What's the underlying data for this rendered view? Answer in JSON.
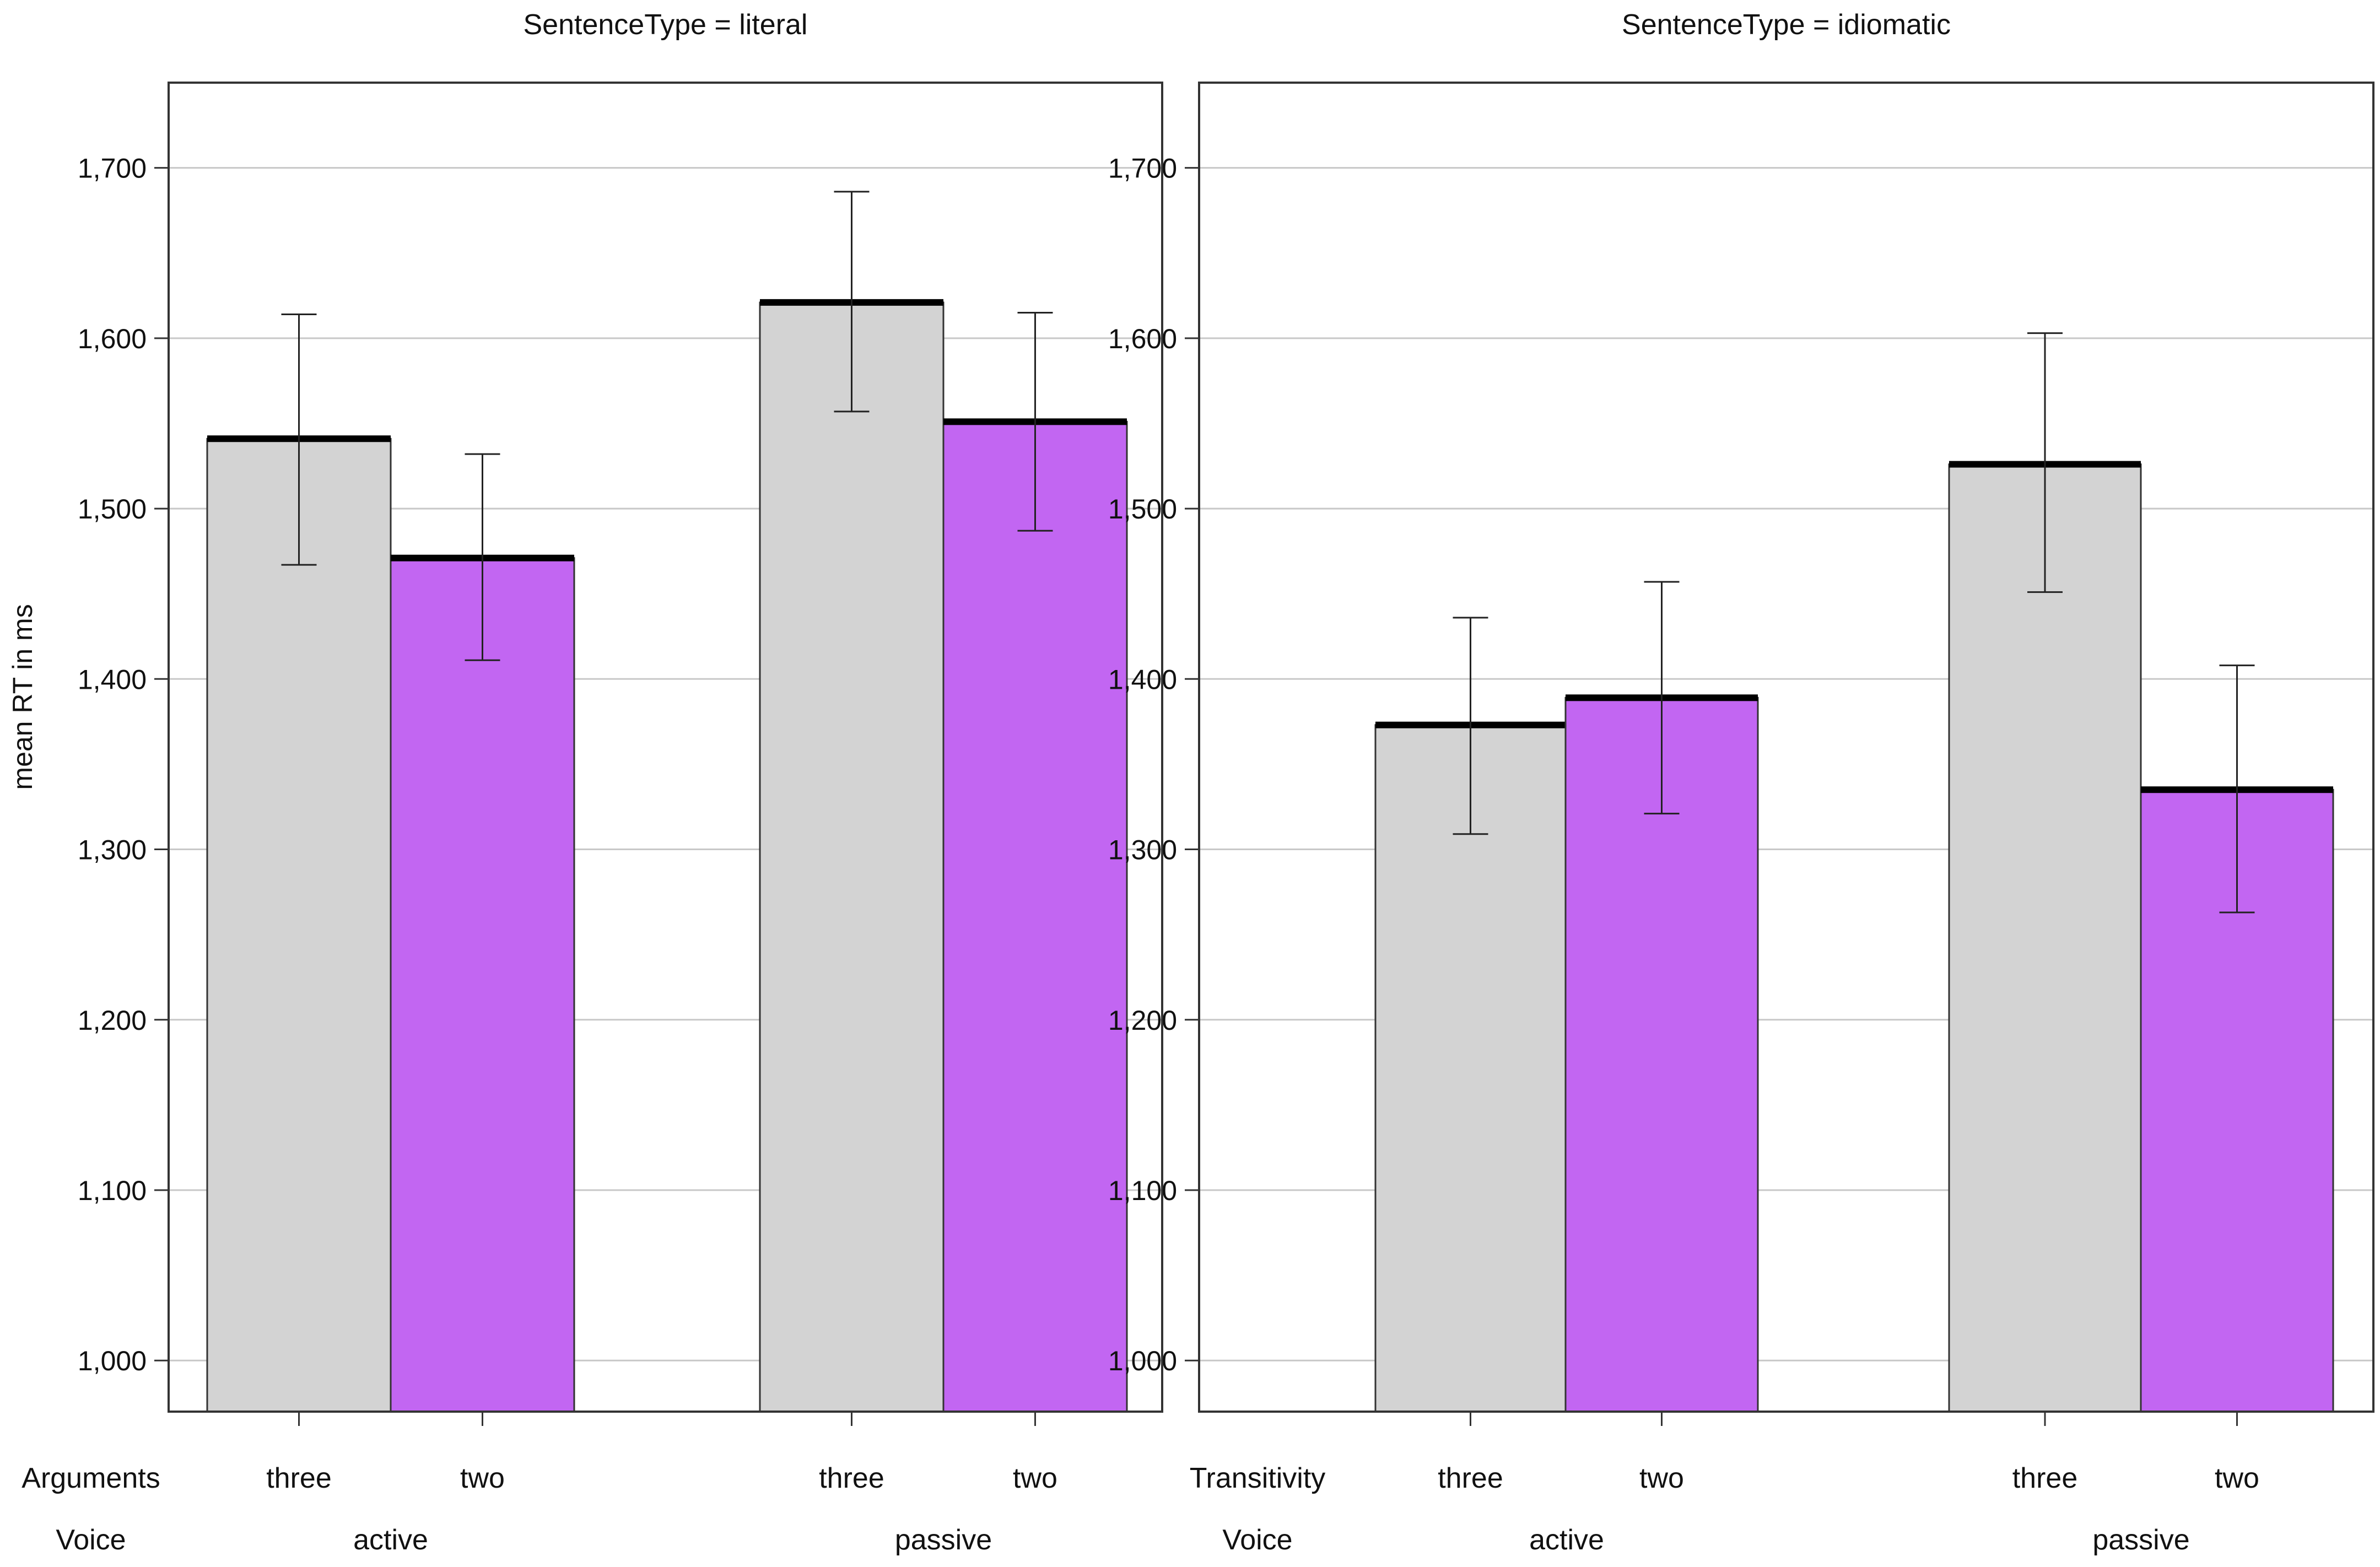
{
  "chart_data": {
    "type": "bar",
    "ylabel": "mean RT in ms",
    "ylim": [
      970,
      1750
    ],
    "yticks": [
      1000,
      1100,
      1200,
      1300,
      1400,
      1500,
      1600,
      1700
    ],
    "ytick_labels": [
      "1,000",
      "1,100",
      "1,200",
      "1,300",
      "1,400",
      "1,500",
      "1,600",
      "1,700"
    ],
    "grid": true,
    "colors": {
      "three": "#d3d3d3",
      "two": "#c266f2",
      "mean_line": "#000000",
      "error_bar": "#222222"
    },
    "panels": [
      {
        "title": "SentenceType = literal",
        "level1_label": "Arguments",
        "level2_label": "Voice",
        "groups": [
          {
            "name": "active",
            "bars": [
              {
                "category": "three",
                "value": 1541,
                "ci": [
                  1467,
                  1614
                ]
              },
              {
                "category": "two",
                "value": 1471,
                "ci": [
                  1411,
                  1532
                ]
              }
            ]
          },
          {
            "name": "passive",
            "bars": [
              {
                "category": "three",
                "value": 1621,
                "ci": [
                  1557,
                  1686
                ]
              },
              {
                "category": "two",
                "value": 1551,
                "ci": [
                  1487,
                  1615
                ]
              }
            ]
          }
        ]
      },
      {
        "title": "SentenceType = idiomatic",
        "level1_label": "Transitivity",
        "level2_label": "Voice",
        "groups": [
          {
            "name": "active",
            "bars": [
              {
                "category": "three",
                "value": 1373,
                "ci": [
                  1309,
                  1436
                ]
              },
              {
                "category": "two",
                "value": 1389,
                "ci": [
                  1321,
                  1457
                ]
              }
            ]
          },
          {
            "name": "passive",
            "bars": [
              {
                "category": "three",
                "value": 1526,
                "ci": [
                  1451,
                  1603
                ]
              },
              {
                "category": "two",
                "value": 1335,
                "ci": [
                  1263,
                  1408
                ]
              }
            ]
          }
        ]
      }
    ]
  }
}
